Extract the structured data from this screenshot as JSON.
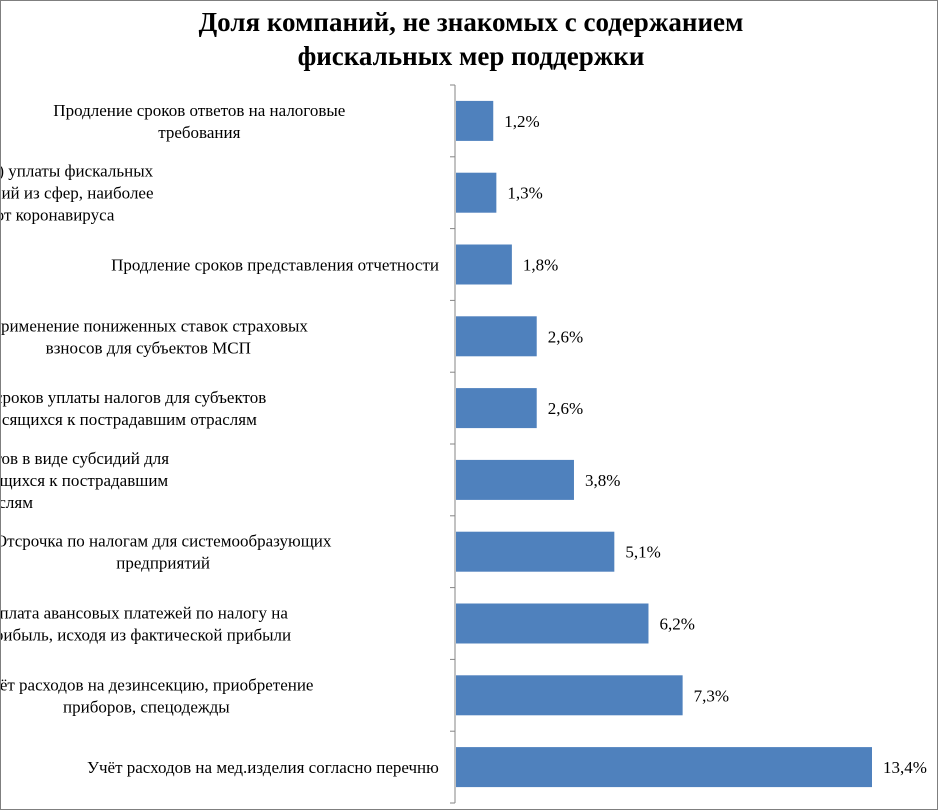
{
  "chart_data": {
    "type": "bar",
    "orientation": "horizontal",
    "title": "Доля компаний, не знакомых с содержанием фискальных мер поддержки",
    "title_lines": [
      "Доля компаний, не знакомых с содержанием",
      "фискальных мер поддержки"
    ],
    "categories": [
      [
        "Продление сроков ответов на налоговые",
        "требования"
      ],
      [
        "Отсрочка (рассрочка) уплаты фискальных",
        "платежей для компаний из сфер, наиболее",
        "пострадавших от коронавируса"
      ],
      [
        "Продление сроков представления отчетности"
      ],
      [
        "Применение пониженных ставок страховых",
        "взносов для субъектов МСП"
      ],
      [
        "Продление сроков уплаты налогов для субъектов",
        "МСП, относящихся к пострадавшим отраслям"
      ],
      [
        "Освобождение от налогов в виде субсидий для",
        "субъектов МСП относящихся к пострадавшим",
        "отраслям"
      ],
      [
        "Отсрочка по налогам для системообразующих",
        "предприятий"
      ],
      [
        "Уплата авансовых платежей по налогу на",
        "прибыль, исходя из фактической прибыли"
      ],
      [
        "Учёт расходов на дезинсекцию, приобретение",
        "приборов, спецодежды"
      ],
      [
        "Учёт расходов на мед.изделия согласно перечню"
      ]
    ],
    "values": [
      1.2,
      1.3,
      1.8,
      2.6,
      2.6,
      3.8,
      5.1,
      6.2,
      7.3,
      13.4
    ],
    "value_labels": [
      "1,2%",
      "1,3%",
      "1,8%",
      "2,6%",
      "2,6%",
      "3,8%",
      "5,1%",
      "6,2%",
      "7,3%",
      "13,4%"
    ],
    "xlim": [
      0,
      13.4
    ],
    "grid": false,
    "legend": "none",
    "bar_color": "#4f81bd"
  }
}
